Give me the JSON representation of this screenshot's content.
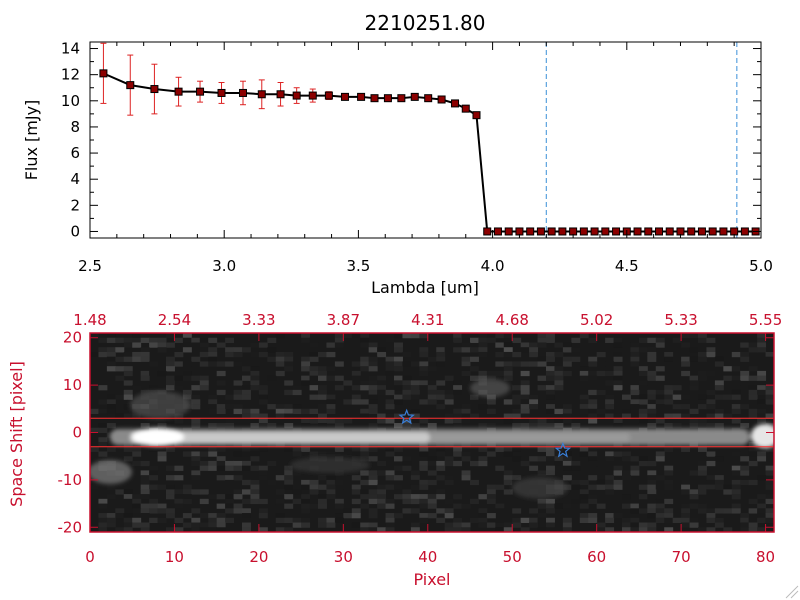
{
  "chart_data": [
    {
      "type": "line",
      "title": "2210251.80",
      "xlabel": "Lambda [um]",
      "ylabel": "Flux [mJy]",
      "xlim": [
        2.5,
        5.0
      ],
      "ylim": [
        -0.5,
        14.5
      ],
      "x_ticks": [
        "2.5",
        "3.0",
        "3.5",
        "4.0",
        "4.5",
        "5.0"
      ],
      "y_ticks": [
        "0",
        "2",
        "4",
        "6",
        "8",
        "10",
        "12",
        "14"
      ],
      "x_tick_values": [
        2.5,
        3.0,
        3.5,
        4.0,
        4.5,
        5.0
      ],
      "y_tick_values": [
        0,
        2,
        4,
        6,
        8,
        10,
        12,
        14
      ],
      "series": [
        {
          "x": [
            2.55,
            2.65,
            2.74,
            2.83,
            2.91,
            2.99,
            3.07,
            3.14,
            3.21,
            3.27,
            3.33,
            3.39,
            3.45,
            3.51,
            3.56,
            3.61,
            3.66,
            3.71,
            3.76,
            3.81,
            3.86,
            3.9,
            3.94,
            3.98,
            4.02,
            4.06,
            4.1,
            4.14,
            4.18,
            4.22,
            4.26,
            4.3,
            4.34,
            4.38,
            4.42,
            4.46,
            4.5,
            4.54,
            4.58,
            4.62,
            4.66,
            4.7,
            4.74,
            4.78,
            4.82,
            4.86,
            4.9,
            4.94,
            4.98
          ],
          "y": [
            12.1,
            11.2,
            10.9,
            10.7,
            10.7,
            10.6,
            10.6,
            10.5,
            10.5,
            10.4,
            10.4,
            10.4,
            10.3,
            10.3,
            10.2,
            10.2,
            10.2,
            10.3,
            10.2,
            10.1,
            9.8,
            9.4,
            8.9,
            0.0,
            0.0,
            0.0,
            0.0,
            0.0,
            0.0,
            0.0,
            0.0,
            0.0,
            0.0,
            0.0,
            0.0,
            0.0,
            0.0,
            0.0,
            0.0,
            0.0,
            0.0,
            0.0,
            0.0,
            0.0,
            0.0,
            0.0,
            0.0,
            0.0,
            0.0
          ],
          "yerr": [
            2.3,
            2.3,
            1.9,
            1.1,
            0.8,
            0.8,
            0.9,
            1.1,
            0.9,
            0.6,
            0.5,
            0.3,
            0.2,
            0.2,
            0.1,
            0.1,
            0.1,
            0.1,
            0.1,
            0.1,
            0.1,
            0.1,
            0.1,
            0.1,
            0.1,
            0.1,
            0.1,
            0.1,
            0.1,
            0.1,
            0.1,
            0.1,
            0.1,
            0.1,
            0.1,
            0.1,
            0.1,
            0.1,
            0.1,
            0.1,
            0.1,
            0.1,
            0.1,
            0.1,
            0.1,
            0.1,
            0.1,
            0.1,
            0.1
          ]
        }
      ],
      "vlines": [
        4.2,
        4.91
      ],
      "colors": {
        "line": "#000000",
        "marker": "#8b0000",
        "errorbar": "#dd2222",
        "vline": "#3a8fd8"
      }
    },
    {
      "type": "heatmap",
      "xlabel": "Pixel",
      "ylabel": "Space Shift [pixel]",
      "xlim": [
        0,
        81
      ],
      "ylim": [
        -21,
        21
      ],
      "x_ticks": [
        "0",
        "10",
        "20",
        "30",
        "40",
        "50",
        "60",
        "70",
        "80"
      ],
      "x_tick_values": [
        0,
        10,
        20,
        30,
        40,
        50,
        60,
        70,
        80
      ],
      "y_ticks": [
        "-20",
        "-10",
        "0",
        "10",
        "20"
      ],
      "y_tick_values": [
        -20,
        -10,
        0,
        10,
        20
      ],
      "top_ticks": [
        "1.48",
        "2.54",
        "3.33",
        "3.87",
        "4.31",
        "4.68",
        "5.02",
        "5.33",
        "5.55"
      ],
      "hlines": [
        3,
        -3
      ],
      "stars": [
        {
          "x": 37.5,
          "y": 3.2
        },
        {
          "x": 56.0,
          "y": -3.8
        }
      ],
      "colors": {
        "axes": "#c8102e",
        "hline": "#ff3030",
        "star": "#3a7fd8"
      }
    }
  ]
}
